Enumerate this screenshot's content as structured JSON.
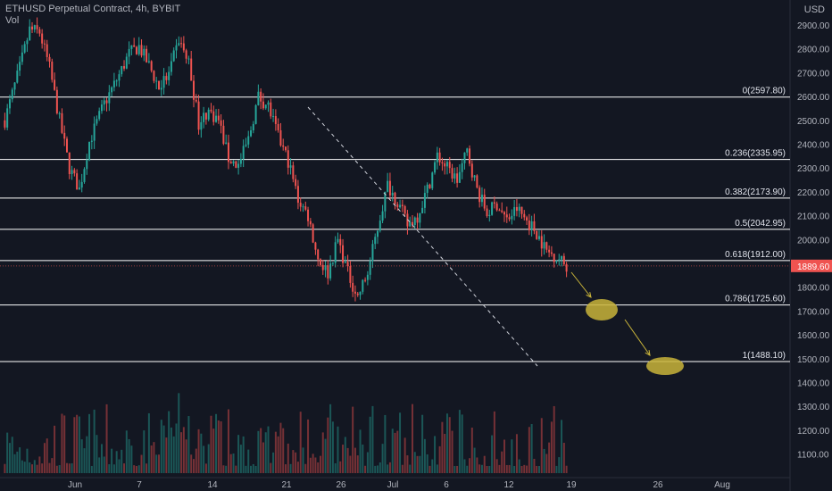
{
  "header": {
    "title": "ETHUSD Perpetual Contract, 4h, BYBIT",
    "vol_label": "Vol"
  },
  "axis_currency": "USD",
  "colors": {
    "bg": "#131722",
    "up": "#26a69a",
    "down": "#ef5350",
    "text": "#b2b5be",
    "fib": "#ffffff",
    "ellipse": "#c9b43a",
    "price_tag": "#ef5350"
  },
  "chart_data": {
    "type": "candlestick",
    "symbol": "ETHUSD",
    "interval": "4h",
    "exchange": "BYBIT",
    "ylim": [
      1050,
      2990
    ],
    "y_ticks": [
      2900,
      2800,
      2700,
      2600,
      2500,
      2400,
      2300,
      2200,
      2100,
      2000,
      1900,
      1800,
      1700,
      1600,
      1500,
      1400,
      1300,
      1200,
      1100
    ],
    "x_ticks": [
      "Jun",
      "7",
      "14",
      "21",
      "26",
      "Jul",
      "6",
      "12",
      "19",
      "26",
      "Aug"
    ],
    "last_price": "1889.60",
    "fib_levels": [
      {
        "label": "0(2597.80)",
        "value": 2597.8
      },
      {
        "label": "0.236(2335.95)",
        "value": 2335.95
      },
      {
        "label": "0.382(2173.90)",
        "value": 2173.9
      },
      {
        "label": "0.5(2042.95)",
        "value": 2042.95
      },
      {
        "label": "0.618(1912.00)",
        "value": 1912.0
      },
      {
        "label": "0.786(1725.60)",
        "value": 1725.6
      },
      {
        "label": "1(1488.10)",
        "value": 1488.1
      }
    ],
    "price_path": [
      [
        0,
        2500
      ],
      [
        6,
        2720
      ],
      [
        10,
        2880
      ],
      [
        14,
        2870
      ],
      [
        18,
        2720
      ],
      [
        22,
        2500
      ],
      [
        26,
        2300
      ],
      [
        30,
        2210
      ],
      [
        34,
        2410
      ],
      [
        40,
        2570
      ],
      [
        46,
        2690
      ],
      [
        50,
        2780
      ],
      [
        54,
        2810
      ],
      [
        58,
        2730
      ],
      [
        62,
        2640
      ],
      [
        66,
        2690
      ],
      [
        70,
        2840
      ],
      [
        74,
        2740
      ],
      [
        78,
        2490
      ],
      [
        82,
        2540
      ],
      [
        86,
        2500
      ],
      [
        90,
        2340
      ],
      [
        94,
        2310
      ],
      [
        98,
        2420
      ],
      [
        102,
        2600
      ],
      [
        106,
        2560
      ],
      [
        110,
        2430
      ],
      [
        114,
        2330
      ],
      [
        118,
        2170
      ],
      [
        122,
        2100
      ],
      [
        126,
        1920
      ],
      [
        130,
        1860
      ],
      [
        134,
        2000
      ],
      [
        138,
        1860
      ],
      [
        142,
        1760
      ],
      [
        146,
        1860
      ],
      [
        150,
        2050
      ],
      [
        154,
        2230
      ],
      [
        158,
        2160
      ],
      [
        162,
        2060
      ],
      [
        166,
        2100
      ],
      [
        170,
        2210
      ],
      [
        174,
        2350
      ],
      [
        178,
        2300
      ],
      [
        182,
        2250
      ],
      [
        186,
        2370
      ],
      [
        190,
        2210
      ],
      [
        194,
        2110
      ],
      [
        198,
        2150
      ],
      [
        202,
        2080
      ],
      [
        206,
        2130
      ],
      [
        210,
        2080
      ],
      [
        214,
        2030
      ],
      [
        218,
        1950
      ],
      [
        222,
        1930
      ],
      [
        226,
        1890
      ]
    ]
  }
}
